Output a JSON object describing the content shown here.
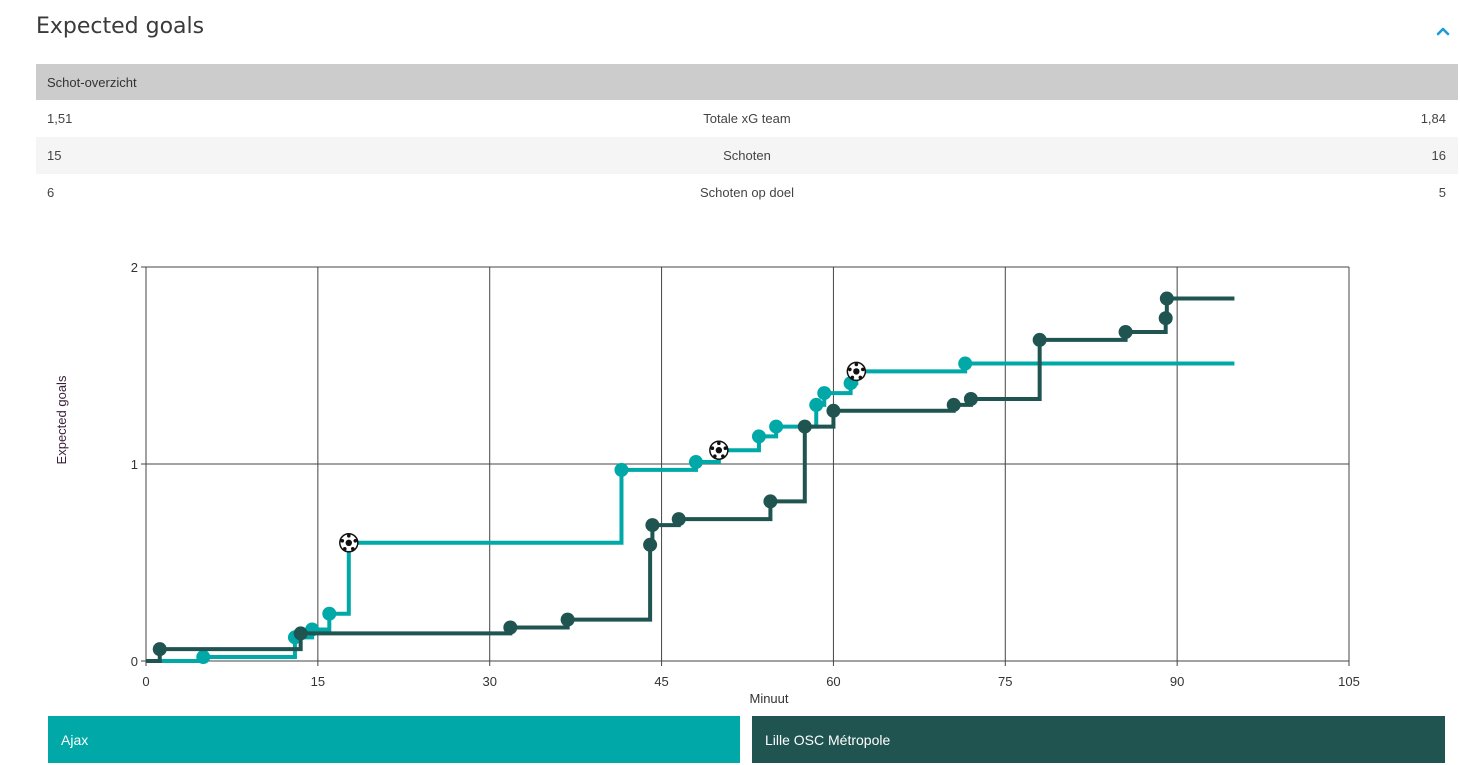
{
  "header": {
    "title": "Expected goals",
    "collapse_icon": "chevron-up-icon",
    "accent": "#1a9bd7"
  },
  "table": {
    "header": "Schot-overzicht",
    "rows": [
      {
        "home": "1,51",
        "label": "Totale xG team",
        "away": "1,84"
      },
      {
        "home": "15",
        "label": "Schoten",
        "away": "16"
      },
      {
        "home": "6",
        "label": "Schoten op doel",
        "away": "5"
      }
    ]
  },
  "chart_data": {
    "type": "line",
    "xlabel": "Minuut",
    "ylabel": "Expected goals",
    "xlim": [
      0,
      105
    ],
    "ylim": [
      0,
      2
    ],
    "x_ticks": [
      "0",
      "15",
      "30",
      "45",
      "60",
      "75",
      "90",
      "105"
    ],
    "y_ticks": [
      "0",
      "1",
      "2"
    ],
    "grid": true,
    "step": true,
    "series": [
      {
        "name": "Ajax",
        "color": "#00a8a8",
        "end_minute": 95,
        "points": [
          {
            "x": 0,
            "y": 0
          },
          {
            "x": 5,
            "y": 0.02
          },
          {
            "x": 13,
            "y": 0.12
          },
          {
            "x": 14.5,
            "y": 0.16
          },
          {
            "x": 16,
            "y": 0.24
          },
          {
            "x": 17.7,
            "y": 0.6,
            "goal": true
          },
          {
            "x": 41.5,
            "y": 0.97
          },
          {
            "x": 48,
            "y": 1.01
          },
          {
            "x": 50,
            "y": 1.07,
            "goal": true
          },
          {
            "x": 53.5,
            "y": 1.14
          },
          {
            "x": 55,
            "y": 1.19
          },
          {
            "x": 58.5,
            "y": 1.3
          },
          {
            "x": 59.2,
            "y": 1.36
          },
          {
            "x": 61.5,
            "y": 1.41
          },
          {
            "x": 62,
            "y": 1.47,
            "goal": true
          },
          {
            "x": 71.5,
            "y": 1.51
          }
        ]
      },
      {
        "name": "Lille OSC Métropole",
        "color": "#1f5451",
        "end_minute": 95,
        "points": [
          {
            "x": 0,
            "y": 0
          },
          {
            "x": 1.2,
            "y": 0.06
          },
          {
            "x": 13.5,
            "y": 0.14
          },
          {
            "x": 31.8,
            "y": 0.17
          },
          {
            "x": 36.8,
            "y": 0.21
          },
          {
            "x": 44,
            "y": 0.59
          },
          {
            "x": 44.2,
            "y": 0.69
          },
          {
            "x": 46.5,
            "y": 0.72
          },
          {
            "x": 54.5,
            "y": 0.81
          },
          {
            "x": 57.5,
            "y": 1.19
          },
          {
            "x": 60,
            "y": 1.27
          },
          {
            "x": 70.5,
            "y": 1.3
          },
          {
            "x": 72,
            "y": 1.33
          },
          {
            "x": 78,
            "y": 1.63
          },
          {
            "x": 85.5,
            "y": 1.67
          },
          {
            "x": 89,
            "y": 1.74
          },
          {
            "x": 89.1,
            "y": 1.84
          }
        ]
      }
    ]
  }
}
